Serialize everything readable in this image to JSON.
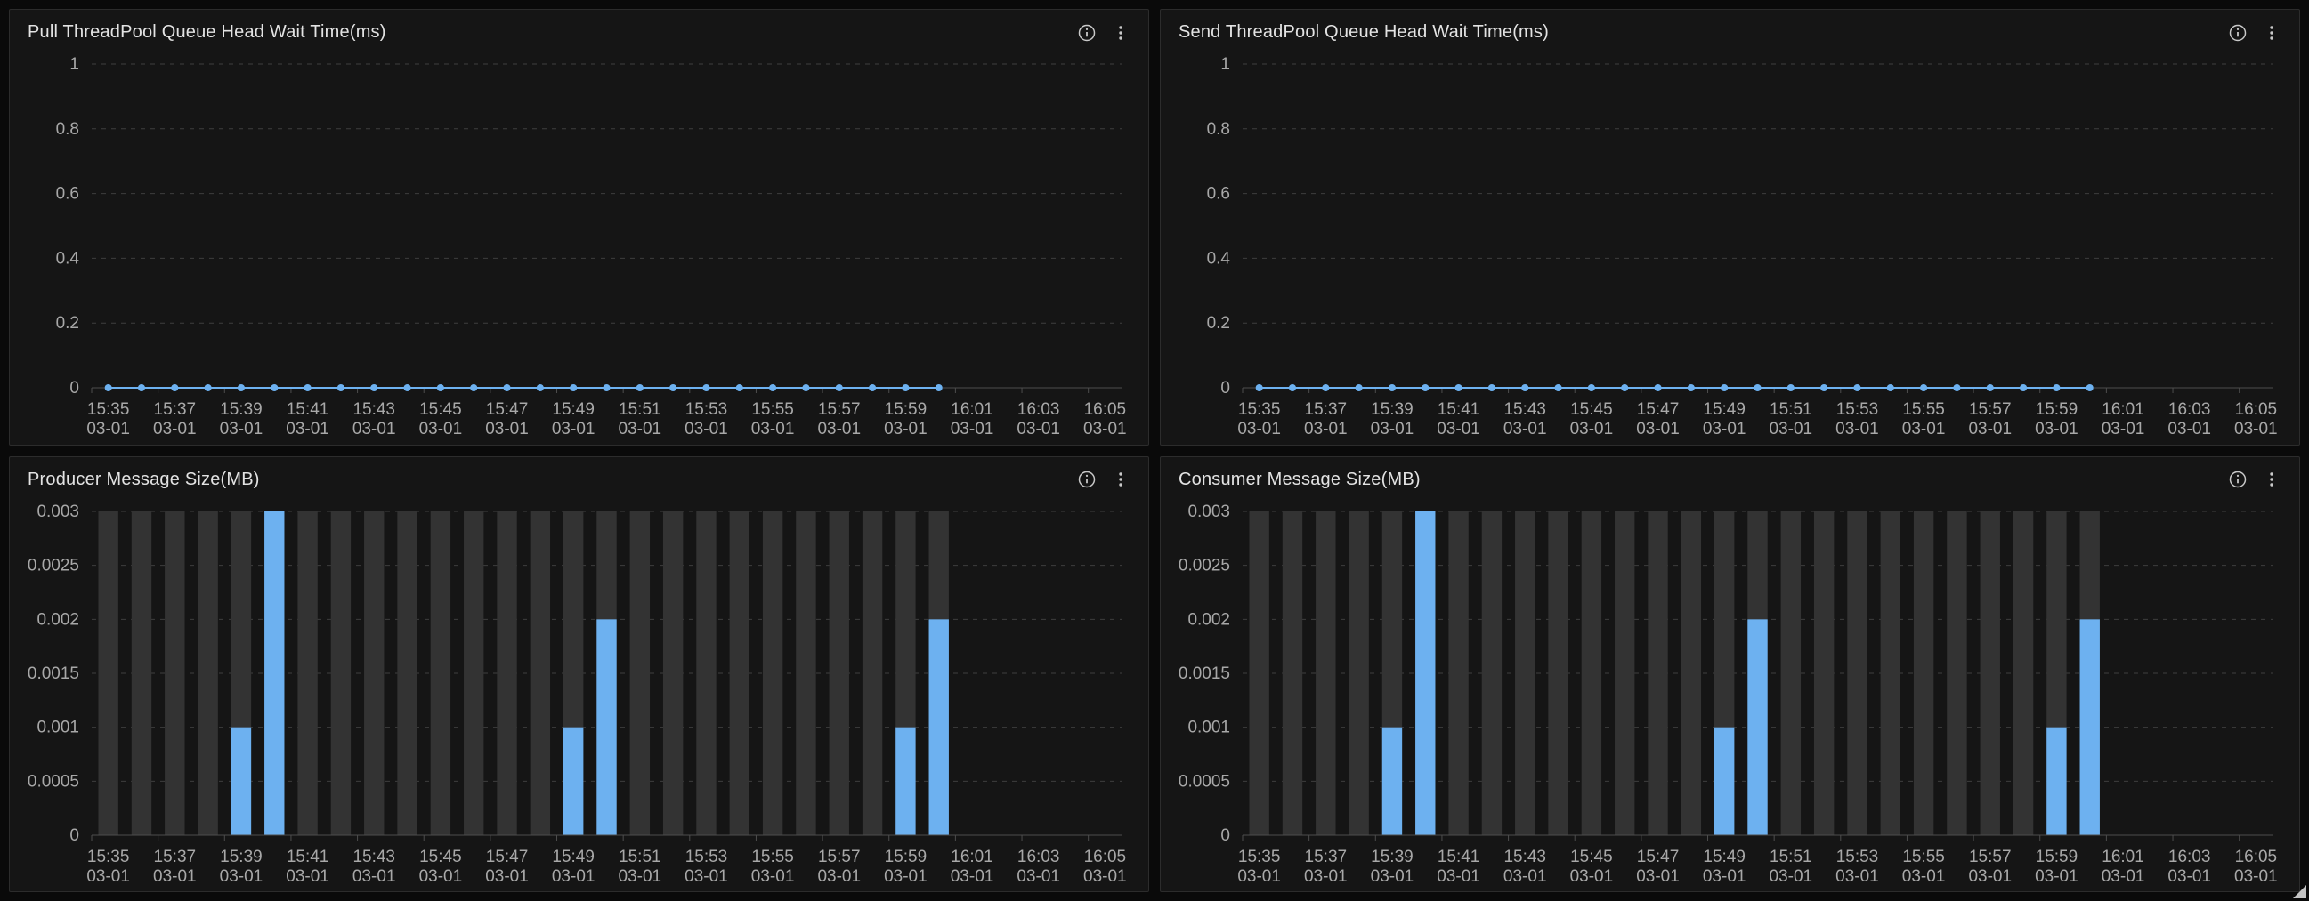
{
  "page": {
    "background": "#0a0a0a"
  },
  "theme": {
    "panel_bg": "#151515",
    "panel_border": "#2c2c2c",
    "title_color": "#e3e3e3",
    "axis_label_color": "#a8a8a8",
    "grid_color": "#3e3e3e",
    "axis_line_color": "#4d4d4d",
    "series_color": "#6db1f0",
    "bar_bg_color": "#333333",
    "icon_color": "#c9c9c9"
  },
  "icons": [
    {
      "name": "info-icon",
      "glyph": "circled-i"
    },
    {
      "name": "kebab-menu-icon",
      "glyph": "vertical-ellipsis"
    }
  ],
  "chart_data": [
    {
      "type": "line",
      "title": "Pull ThreadPool Queue Head Wait Time(ms)",
      "x": [
        "15:35",
        "15:36",
        "15:37",
        "15:38",
        "15:39",
        "15:40",
        "15:41",
        "15:42",
        "15:43",
        "15:44",
        "15:45",
        "15:46",
        "15:47",
        "15:48",
        "15:49",
        "15:50",
        "15:51",
        "15:52",
        "15:53",
        "15:54",
        "15:55",
        "15:56",
        "15:57",
        "15:58",
        "15:59",
        "16:00"
      ],
      "values": [
        0,
        0,
        0,
        0,
        0,
        0,
        0,
        0,
        0,
        0,
        0,
        0,
        0,
        0,
        0,
        0,
        0,
        0,
        0,
        0,
        0,
        0,
        0,
        0,
        0,
        0
      ],
      "x_axis_slots": [
        "15:35",
        "15:36",
        "15:37",
        "15:38",
        "15:39",
        "15:40",
        "15:41",
        "15:42",
        "15:43",
        "15:44",
        "15:45",
        "15:46",
        "15:47",
        "15:48",
        "15:49",
        "15:50",
        "15:51",
        "15:52",
        "15:53",
        "15:54",
        "15:55",
        "15:56",
        "15:57",
        "15:58",
        "15:59",
        "16:00",
        "16:01",
        "16:02",
        "16:03",
        "16:04",
        "16:05"
      ],
      "x_label_step": 2,
      "x_label_line2": "03-01",
      "ylim": [
        0,
        1
      ],
      "yticks": [
        0,
        0.2,
        0.4,
        0.6,
        0.8,
        1
      ],
      "grid": "horizontal-dashed",
      "legend": "none"
    },
    {
      "type": "line",
      "title": "Send ThreadPool Queue Head Wait Time(ms)",
      "x": [
        "15:35",
        "15:36",
        "15:37",
        "15:38",
        "15:39",
        "15:40",
        "15:41",
        "15:42",
        "15:43",
        "15:44",
        "15:45",
        "15:46",
        "15:47",
        "15:48",
        "15:49",
        "15:50",
        "15:51",
        "15:52",
        "15:53",
        "15:54",
        "15:55",
        "15:56",
        "15:57",
        "15:58",
        "15:59",
        "16:00"
      ],
      "values": [
        0,
        0,
        0,
        0,
        0,
        0,
        0,
        0,
        0,
        0,
        0,
        0,
        0,
        0,
        0,
        0,
        0,
        0,
        0,
        0,
        0,
        0,
        0,
        0,
        0,
        0
      ],
      "x_axis_slots": [
        "15:35",
        "15:36",
        "15:37",
        "15:38",
        "15:39",
        "15:40",
        "15:41",
        "15:42",
        "15:43",
        "15:44",
        "15:45",
        "15:46",
        "15:47",
        "15:48",
        "15:49",
        "15:50",
        "15:51",
        "15:52",
        "15:53",
        "15:54",
        "15:55",
        "15:56",
        "15:57",
        "15:58",
        "15:59",
        "16:00",
        "16:01",
        "16:02",
        "16:03",
        "16:04",
        "16:05"
      ],
      "x_label_step": 2,
      "x_label_line2": "03-01",
      "ylim": [
        0,
        1
      ],
      "yticks": [
        0,
        0.2,
        0.4,
        0.6,
        0.8,
        1
      ],
      "grid": "horizontal-dashed",
      "legend": "none"
    },
    {
      "type": "bar",
      "title": "Producer Message Size(MB)",
      "x": [
        "15:35",
        "15:36",
        "15:37",
        "15:38",
        "15:39",
        "15:40",
        "15:41",
        "15:42",
        "15:43",
        "15:44",
        "15:45",
        "15:46",
        "15:47",
        "15:48",
        "15:49",
        "15:50",
        "15:51",
        "15:52",
        "15:53",
        "15:54",
        "15:55",
        "15:56",
        "15:57",
        "15:58",
        "15:59",
        "16:00"
      ],
      "values": [
        0,
        0,
        0,
        0,
        0.001,
        0.003,
        0,
        0,
        0,
        0,
        0,
        0,
        0,
        0,
        0.001,
        0.002,
        0,
        0,
        0,
        0,
        0,
        0,
        0,
        0,
        0.001,
        0.002
      ],
      "x_axis_slots": [
        "15:35",
        "15:36",
        "15:37",
        "15:38",
        "15:39",
        "15:40",
        "15:41",
        "15:42",
        "15:43",
        "15:44",
        "15:45",
        "15:46",
        "15:47",
        "15:48",
        "15:49",
        "15:50",
        "15:51",
        "15:52",
        "15:53",
        "15:54",
        "15:55",
        "15:56",
        "15:57",
        "15:58",
        "15:59",
        "16:00",
        "16:01",
        "16:02",
        "16:03",
        "16:04",
        "16:05"
      ],
      "x_label_step": 2,
      "x_label_line2": "03-01",
      "ylim": [
        0,
        0.003
      ],
      "yticks": [
        0,
        0.0005,
        0.001,
        0.0015,
        0.002,
        0.0025,
        0.003
      ],
      "grid": "horizontal-dashed",
      "show_background_bars": true,
      "legend": "none"
    },
    {
      "type": "bar",
      "title": "Consumer Message Size(MB)",
      "x": [
        "15:35",
        "15:36",
        "15:37",
        "15:38",
        "15:39",
        "15:40",
        "15:41",
        "15:42",
        "15:43",
        "15:44",
        "15:45",
        "15:46",
        "15:47",
        "15:48",
        "15:49",
        "15:50",
        "15:51",
        "15:52",
        "15:53",
        "15:54",
        "15:55",
        "15:56",
        "15:57",
        "15:58",
        "15:59",
        "16:00"
      ],
      "values": [
        0,
        0,
        0,
        0,
        0.001,
        0.003,
        0,
        0,
        0,
        0,
        0,
        0,
        0,
        0,
        0.001,
        0.002,
        0,
        0,
        0,
        0,
        0,
        0,
        0,
        0,
        0.001,
        0.002
      ],
      "x_axis_slots": [
        "15:35",
        "15:36",
        "15:37",
        "15:38",
        "15:39",
        "15:40",
        "15:41",
        "15:42",
        "15:43",
        "15:44",
        "15:45",
        "15:46",
        "15:47",
        "15:48",
        "15:49",
        "15:50",
        "15:51",
        "15:52",
        "15:53",
        "15:54",
        "15:55",
        "15:56",
        "15:57",
        "15:58",
        "15:59",
        "16:00",
        "16:01",
        "16:02",
        "16:03",
        "16:04",
        "16:05"
      ],
      "x_label_step": 2,
      "x_label_line2": "03-01",
      "ylim": [
        0,
        0.003
      ],
      "yticks": [
        0,
        0.0005,
        0.001,
        0.0015,
        0.002,
        0.0025,
        0.003
      ],
      "grid": "horizontal-dashed",
      "show_background_bars": true,
      "legend": "none"
    }
  ]
}
